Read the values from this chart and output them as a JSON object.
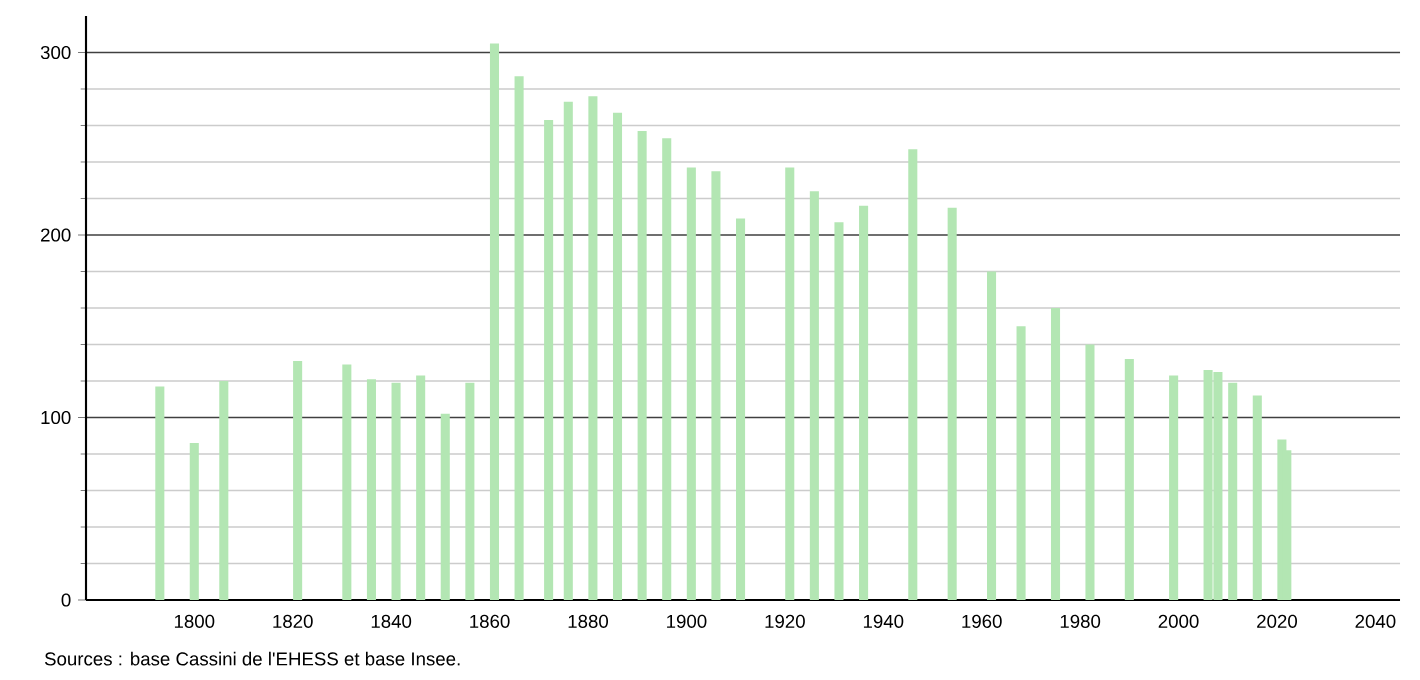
{
  "chart_data": {
    "type": "bar",
    "x": [
      1793,
      1800,
      1806,
      1821,
      1831,
      1836,
      1841,
      1846,
      1851,
      1856,
      1861,
      1866,
      1872,
      1876,
      1881,
      1886,
      1891,
      1896,
      1901,
      1906,
      1911,
      1921,
      1926,
      1931,
      1936,
      1946,
      1954,
      1962,
      1968,
      1975,
      1982,
      1990,
      1999,
      2006,
      2008,
      2011,
      2016,
      2021,
      2022
    ],
    "values": [
      117,
      86,
      120,
      131,
      129,
      121,
      119,
      123,
      102,
      119,
      305,
      287,
      263,
      273,
      276,
      267,
      257,
      253,
      237,
      235,
      209,
      237,
      224,
      207,
      216,
      247,
      215,
      180,
      150,
      160,
      140,
      132,
      123,
      126,
      125,
      119,
      112,
      88,
      82
    ],
    "color": "#b3e6b3",
    "xlim": [
      1778,
      2045
    ],
    "ylim": [
      0,
      320
    ],
    "xticks": [
      1800,
      1820,
      1840,
      1860,
      1880,
      1900,
      1920,
      1940,
      1960,
      1980,
      2000,
      2020,
      2040
    ],
    "yticks": [
      0,
      100,
      200,
      300
    ],
    "grid": "y",
    "annotations": [
      "Sources : base Cassini de l'EHESS et base Insee."
    ]
  }
}
